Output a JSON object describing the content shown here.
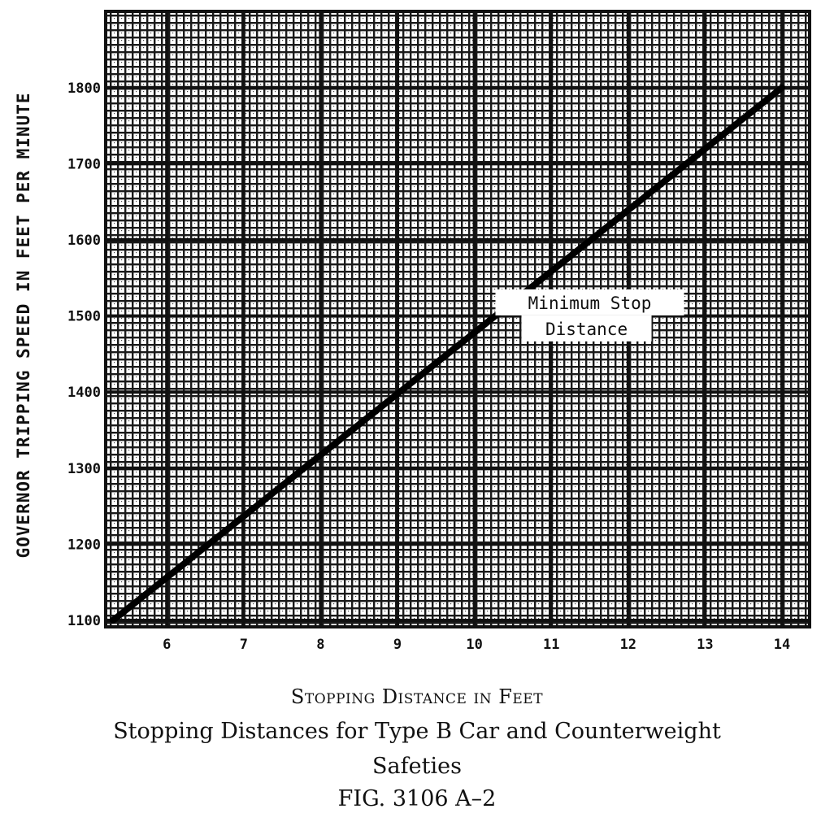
{
  "chart_data": {
    "type": "line",
    "title": "Stopping Distances for Type B Car and Counterweight",
    "title_line2": "Safeties",
    "figure_number": "FIG. 3106 A–2",
    "xlabel": "Stopping Distance in Feet",
    "ylabel": "GOVERNOR TRIPPING SPEED IN FEET PER MINUTE",
    "xlim": [
      5.3,
      14
    ],
    "ylim": [
      1100,
      1900
    ],
    "x_ticks": [
      6,
      7,
      8,
      9,
      10,
      11,
      12,
      13,
      14
    ],
    "x_tick_labels": [
      "6",
      "7",
      "8",
      "9",
      "10",
      "11",
      "12",
      "13",
      "14"
    ],
    "y_ticks": [
      1100,
      1200,
      1300,
      1400,
      1500,
      1600,
      1700,
      1800
    ],
    "y_tick_labels": [
      "1100",
      "1200",
      "1300",
      "1400",
      "1500",
      "1600",
      "1700",
      "1800"
    ],
    "grid": true,
    "series": [
      {
        "name": "Minimum Stop Distance",
        "x": [
          5.3,
          14
        ],
        "y": [
          1100,
          1800
        ]
      }
    ],
    "annotation": {
      "line1": "Minimum Stop",
      "line2": "Distance",
      "x": 11.5,
      "y": 1505
    }
  }
}
